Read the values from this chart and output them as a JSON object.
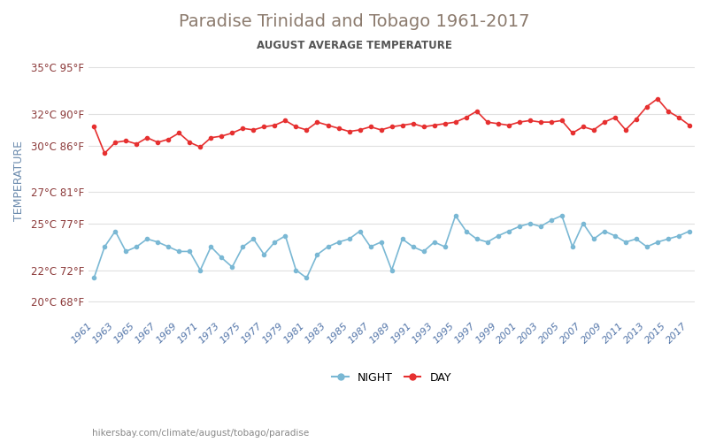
{
  "title": "Paradise Trinidad and Tobago 1961-2017",
  "subtitle": "AUGUST AVERAGE TEMPERATURE",
  "ylabel": "TEMPERATURE",
  "xlabel_url": "hikersbay.com/climate/august/tobago/paradise",
  "years": [
    1961,
    1962,
    1963,
    1964,
    1965,
    1966,
    1967,
    1968,
    1969,
    1970,
    1971,
    1972,
    1973,
    1974,
    1975,
    1976,
    1977,
    1978,
    1979,
    1980,
    1981,
    1982,
    1983,
    1984,
    1985,
    1986,
    1987,
    1988,
    1989,
    1990,
    1991,
    1992,
    1993,
    1994,
    1995,
    1996,
    1997,
    1998,
    1999,
    2000,
    2001,
    2002,
    2003,
    2004,
    2005,
    2006,
    2007,
    2008,
    2009,
    2010,
    2011,
    2012,
    2013,
    2014,
    2015,
    2016,
    2017
  ],
  "day_temps": [
    31.2,
    29.5,
    30.2,
    30.3,
    30.1,
    30.5,
    30.2,
    30.4,
    30.8,
    30.2,
    29.9,
    30.5,
    30.6,
    30.8,
    31.1,
    31.0,
    31.2,
    31.3,
    31.6,
    31.2,
    31.0,
    31.5,
    31.3,
    31.1,
    30.9,
    31.0,
    31.2,
    31.0,
    31.2,
    31.3,
    31.4,
    31.2,
    31.3,
    31.4,
    31.5,
    31.8,
    32.2,
    31.5,
    31.4,
    31.3,
    31.5,
    31.6,
    31.5,
    31.5,
    31.6,
    30.8,
    31.2,
    31.0,
    31.5,
    31.8,
    31.0,
    31.7,
    32.5,
    33.0,
    32.2,
    31.8,
    31.3
  ],
  "night_temps": [
    21.5,
    23.5,
    24.5,
    23.2,
    23.5,
    24.0,
    23.8,
    23.5,
    23.2,
    23.2,
    22.0,
    23.5,
    22.8,
    22.2,
    23.5,
    24.0,
    23.0,
    23.8,
    24.2,
    22.0,
    21.5,
    23.0,
    23.5,
    23.8,
    24.0,
    24.5,
    23.5,
    23.8,
    22.0,
    24.0,
    23.5,
    23.2,
    23.8,
    23.5,
    25.5,
    24.5,
    24.0,
    23.8,
    24.2,
    24.5,
    24.8,
    25.0,
    24.8,
    25.2,
    25.5,
    23.5,
    25.0,
    24.0,
    24.5,
    24.2,
    23.8,
    24.0,
    23.5,
    23.8,
    24.0,
    24.2,
    24.5
  ],
  "day_color": "#e63030",
  "night_color": "#7ab8d4",
  "title_color": "#8c7b6e",
  "subtitle_color": "#555555",
  "ytick_color": "#8c3a3a",
  "ylabel_color": "#6a8aad",
  "background_color": "#ffffff",
  "grid_color": "#e0e0e0",
  "yticks_c": [
    20,
    22,
    25,
    27,
    30,
    32,
    35
  ],
  "yticks_f": [
    68,
    72,
    77,
    81,
    86,
    90,
    95
  ],
  "ylim": [
    19.0,
    36.5
  ]
}
